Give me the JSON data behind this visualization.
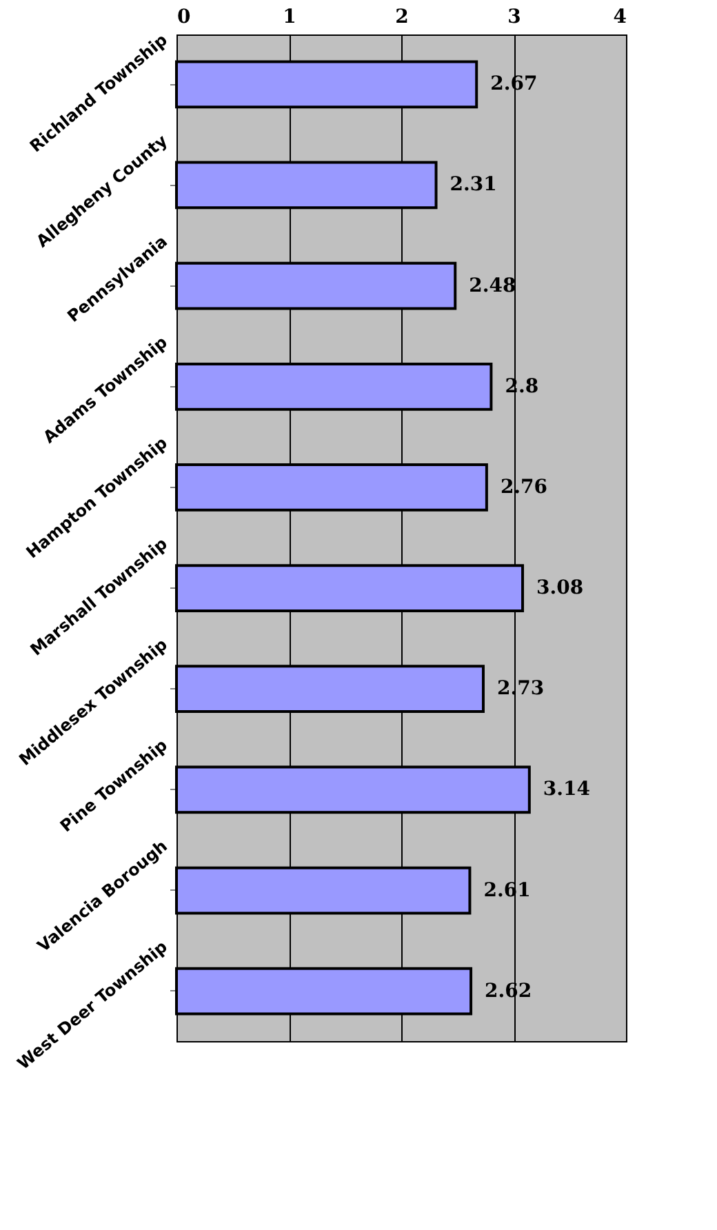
{
  "chart_data": {
    "type": "bar",
    "orientation": "horizontal",
    "categories": [
      "Richland Township",
      "Allegheny County",
      "Pennsylvania",
      "Adams Township",
      "Hampton Township",
      "Marshall Township",
      "Middlesex Township",
      "Pine Township",
      "Valencia Borough",
      "West Deer Township"
    ],
    "values": [
      2.67,
      2.31,
      2.48,
      2.8,
      2.76,
      3.08,
      2.73,
      3.14,
      2.61,
      2.62
    ],
    "color": "#9999ff",
    "xlim": [
      0,
      4
    ],
    "xticks": [
      0,
      1,
      2,
      3,
      4
    ],
    "grid": "x",
    "data_labels": true
  }
}
